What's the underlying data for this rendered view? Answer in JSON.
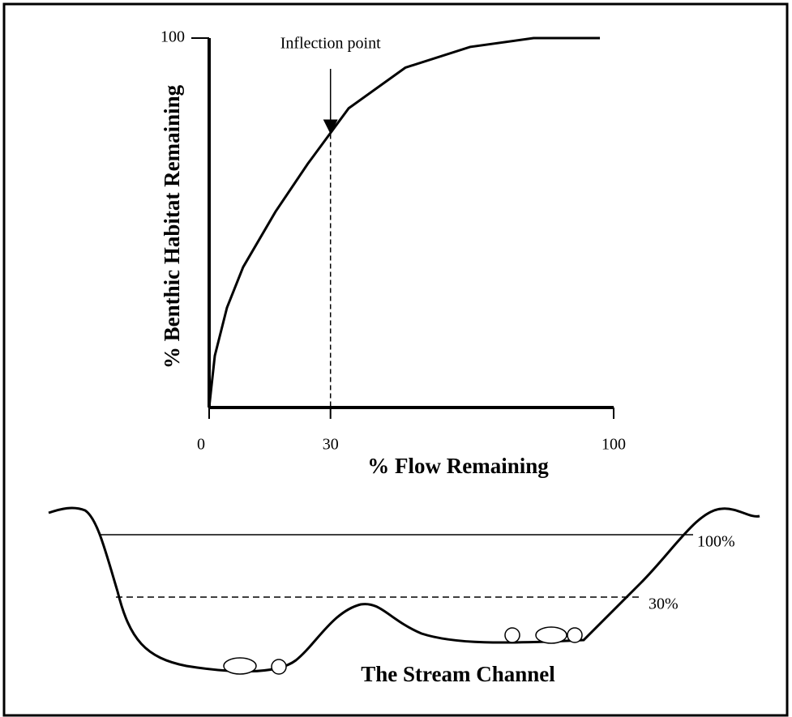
{
  "chart_data": {
    "type": "line",
    "xlabel": "% Flow Remaining",
    "ylabel": "% Benthic Habitat Remaining",
    "x": [
      0,
      1.4,
      4.4,
      8.4,
      16.4,
      24.4,
      34.5,
      48.5,
      64.5,
      80.2,
      96.6
    ],
    "series": [
      {
        "color": "#000000",
        "values": [
          0,
          14,
          27,
          38,
          53,
          66,
          81,
          92,
          97.6,
          100,
          100
        ]
      }
    ],
    "xlim": [
      0,
      100
    ],
    "ylim": [
      0,
      100
    ],
    "xticks": [
      0,
      30,
      100
    ],
    "yticks": [
      100
    ],
    "annotation": {
      "text": "Inflection point",
      "x": 30,
      "y": 74
    }
  },
  "diagram": {
    "title": "The Stream Channel",
    "levels": [
      "100%",
      "30%"
    ]
  }
}
